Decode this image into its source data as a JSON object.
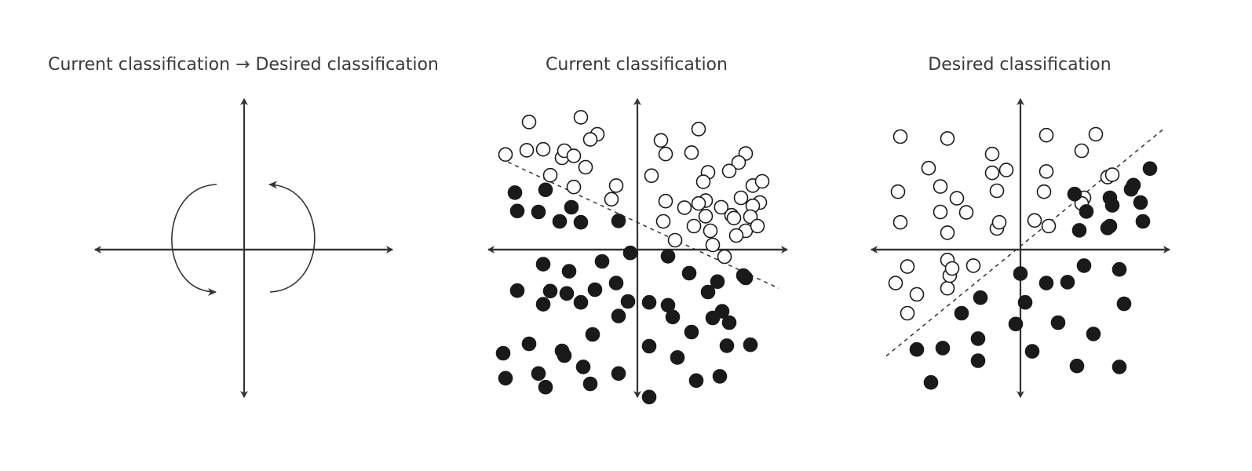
{
  "titles": {
    "rotation": "Current classification → Desired classification",
    "current": "Current classification",
    "desired": "Desired classification"
  },
  "colors": {
    "ink": "#333333",
    "point": "#1a1a1a",
    "background": "#ffffff"
  },
  "icons": {
    "rotation": "rotate-arrows-icon"
  },
  "panels": {
    "current": {
      "open": [
        [
          -2.3,
          2.71
        ],
        [
          -1.2,
          2.81
        ],
        [
          -0.45,
          1.36
        ],
        [
          -2.0,
          2.13
        ],
        [
          -1.85,
          1.58
        ],
        [
          -1.6,
          1.95
        ],
        [
          -0.85,
          2.45
        ],
        [
          -2.8,
          2.02
        ],
        [
          -2.35,
          2.11
        ],
        [
          -1.55,
          2.1
        ],
        [
          -1.0,
          2.34
        ],
        [
          -1.35,
          1.99
        ],
        [
          -1.1,
          1.75
        ],
        [
          -1.35,
          1.33
        ],
        [
          -0.55,
          1.07
        ],
        [
          0.5,
          2.32
        ],
        [
          1.3,
          2.56
        ],
        [
          2.3,
          2.04
        ],
        [
          2.45,
          1.36
        ],
        [
          0.6,
          2.03
        ],
        [
          0.3,
          1.57
        ],
        [
          1.5,
          1.64
        ],
        [
          1.15,
          2.06
        ],
        [
          2.15,
          1.85
        ],
        [
          2.65,
          1.45
        ],
        [
          2.2,
          1.1
        ],
        [
          1.45,
          1.04
        ],
        [
          0.6,
          1.03
        ],
        [
          1.4,
          1.44
        ],
        [
          1.45,
          0.71
        ],
        [
          1.95,
          1.67
        ],
        [
          1.3,
          0.98
        ],
        [
          1.0,
          0.89
        ],
        [
          2.0,
          0.73
        ],
        [
          0.55,
          0.6
        ],
        [
          1.2,
          0.5
        ],
        [
          2.6,
          1.0
        ],
        [
          2.3,
          0.4
        ],
        [
          2.05,
          0.67
        ],
        [
          2.45,
          0.93
        ],
        [
          1.78,
          0.9
        ],
        [
          2.4,
          0.7
        ],
        [
          1.55,
          0.4
        ],
        [
          0.8,
          0.2
        ],
        [
          1.6,
          0.1
        ],
        [
          2.55,
          0.5
        ],
        [
          2.1,
          0.3
        ],
        [
          1.85,
          -0.15
        ]
      ],
      "filled": [
        [
          -2.6,
          1.21
        ],
        [
          -1.95,
          1.27
        ],
        [
          -2.55,
          0.82
        ],
        [
          -2.1,
          0.8
        ],
        [
          -1.4,
          0.9
        ],
        [
          -1.65,
          0.6
        ],
        [
          -1.2,
          0.58
        ],
        [
          -0.4,
          0.61
        ],
        [
          -2.0,
          -0.31
        ],
        [
          -1.45,
          -0.46
        ],
        [
          -0.45,
          -0.71
        ],
        [
          -0.75,
          -0.25
        ],
        [
          -0.15,
          -0.07
        ],
        [
          0.65,
          -0.14
        ],
        [
          -1.5,
          -0.93
        ],
        [
          -2.0,
          -1.16
        ],
        [
          -0.9,
          -0.85
        ],
        [
          -2.55,
          -0.87
        ],
        [
          -1.85,
          -0.88
        ],
        [
          -1.2,
          -1.12
        ],
        [
          -0.2,
          -1.1
        ],
        [
          -0.4,
          -1.41
        ],
        [
          0.25,
          -1.12
        ],
        [
          0.65,
          -1.18
        ],
        [
          1.1,
          -0.5
        ],
        [
          1.7,
          -0.68
        ],
        [
          1.8,
          -1.31
        ],
        [
          1.6,
          -1.45
        ],
        [
          0.75,
          -1.43
        ],
        [
          1.5,
          -0.9
        ],
        [
          2.25,
          -0.55
        ],
        [
          2.3,
          -0.6
        ],
        [
          1.95,
          -1.55
        ],
        [
          -0.95,
          -1.8
        ],
        [
          -2.3,
          -2.0
        ],
        [
          -1.6,
          -2.15
        ],
        [
          -1.55,
          -2.25
        ],
        [
          -2.85,
          -2.2
        ],
        [
          -2.1,
          -2.63
        ],
        [
          -2.8,
          -2.73
        ],
        [
          -1.15,
          -2.49
        ],
        [
          -0.4,
          -2.63
        ],
        [
          -1.0,
          -2.85
        ],
        [
          -1.95,
          -2.92
        ],
        [
          0.25,
          -2.05
        ],
        [
          0.85,
          -2.29
        ],
        [
          1.15,
          -1.75
        ],
        [
          1.25,
          -2.78
        ],
        [
          0.25,
          -3.13
        ],
        [
          1.75,
          -2.69
        ],
        [
          2.4,
          -2.02
        ],
        [
          1.9,
          -2.04
        ]
      ],
      "boundary": [
        [
          -2.9,
          1.93
        ],
        [
          3.0,
          -0.82
        ]
      ]
    },
    "desired": {
      "open": [
        [
          -2.55,
          2.4
        ],
        [
          -1.55,
          2.36
        ],
        [
          -0.6,
          2.03
        ],
        [
          0.55,
          2.43
        ],
        [
          -1.95,
          1.73
        ],
        [
          -0.3,
          1.69
        ],
        [
          -2.6,
          1.23
        ],
        [
          -1.7,
          1.34
        ],
        [
          -1.35,
          1.09
        ],
        [
          0.55,
          1.66
        ],
        [
          0.5,
          1.23
        ],
        [
          -2.55,
          0.58
        ],
        [
          -1.7,
          0.8
        ],
        [
          -0.5,
          1.25
        ],
        [
          -1.15,
          0.79
        ],
        [
          0.6,
          0.5
        ],
        [
          -2.4,
          -0.36
        ],
        [
          -2.65,
          -0.71
        ],
        [
          -1.55,
          -0.22
        ],
        [
          -1.0,
          -0.34
        ],
        [
          -2.2,
          -0.95
        ],
        [
          -1.55,
          -0.82
        ],
        [
          -2.4,
          -1.35
        ],
        [
          -1.5,
          -0.55
        ],
        [
          -1.45,
          -0.4
        ],
        [
          -0.5,
          0.45
        ],
        [
          1.3,
          2.1
        ],
        [
          1.6,
          2.45
        ],
        [
          -1.55,
          0.36
        ],
        [
          0.3,
          0.62
        ],
        [
          -0.45,
          0.58
        ],
        [
          -0.6,
          1.63
        ],
        [
          1.85,
          1.54
        ],
        [
          1.35,
          1.1
        ],
        [
          1.3,
          0.98
        ],
        [
          1.95,
          1.59
        ]
      ],
      "filled": [
        [
          0.0,
          -0.51
        ],
        [
          0.55,
          -0.71
        ],
        [
          0.1,
          -1.12
        ],
        [
          1.0,
          -0.69
        ],
        [
          1.35,
          -0.34
        ],
        [
          2.1,
          -0.42
        ],
        [
          2.2,
          -1.15
        ],
        [
          -0.85,
          -1.02
        ],
        [
          -1.25,
          -1.35
        ],
        [
          -0.9,
          -1.89
        ],
        [
          -2.2,
          -2.12
        ],
        [
          -1.65,
          -2.09
        ],
        [
          -1.9,
          -2.82
        ],
        [
          -0.9,
          -2.36
        ],
        [
          -0.1,
          -1.58
        ],
        [
          0.25,
          -2.16
        ],
        [
          0.8,
          -1.55
        ],
        [
          1.55,
          -1.79
        ],
        [
          1.2,
          -2.47
        ],
        [
          2.1,
          -2.49
        ],
        [
          2.6,
          0.6
        ],
        [
          1.85,
          0.46
        ],
        [
          1.95,
          0.94
        ],
        [
          2.35,
          1.28
        ],
        [
          1.9,
          1.1
        ],
        [
          2.4,
          1.37
        ],
        [
          1.15,
          1.18
        ],
        [
          1.4,
          0.81
        ],
        [
          2.75,
          1.72
        ],
        [
          2.55,
          1.0
        ],
        [
          1.9,
          0.5
        ],
        [
          1.25,
          0.41
        ]
      ],
      "boundary": [
        [
          -2.85,
          -2.26
        ],
        [
          3.05,
          2.57
        ]
      ]
    }
  }
}
